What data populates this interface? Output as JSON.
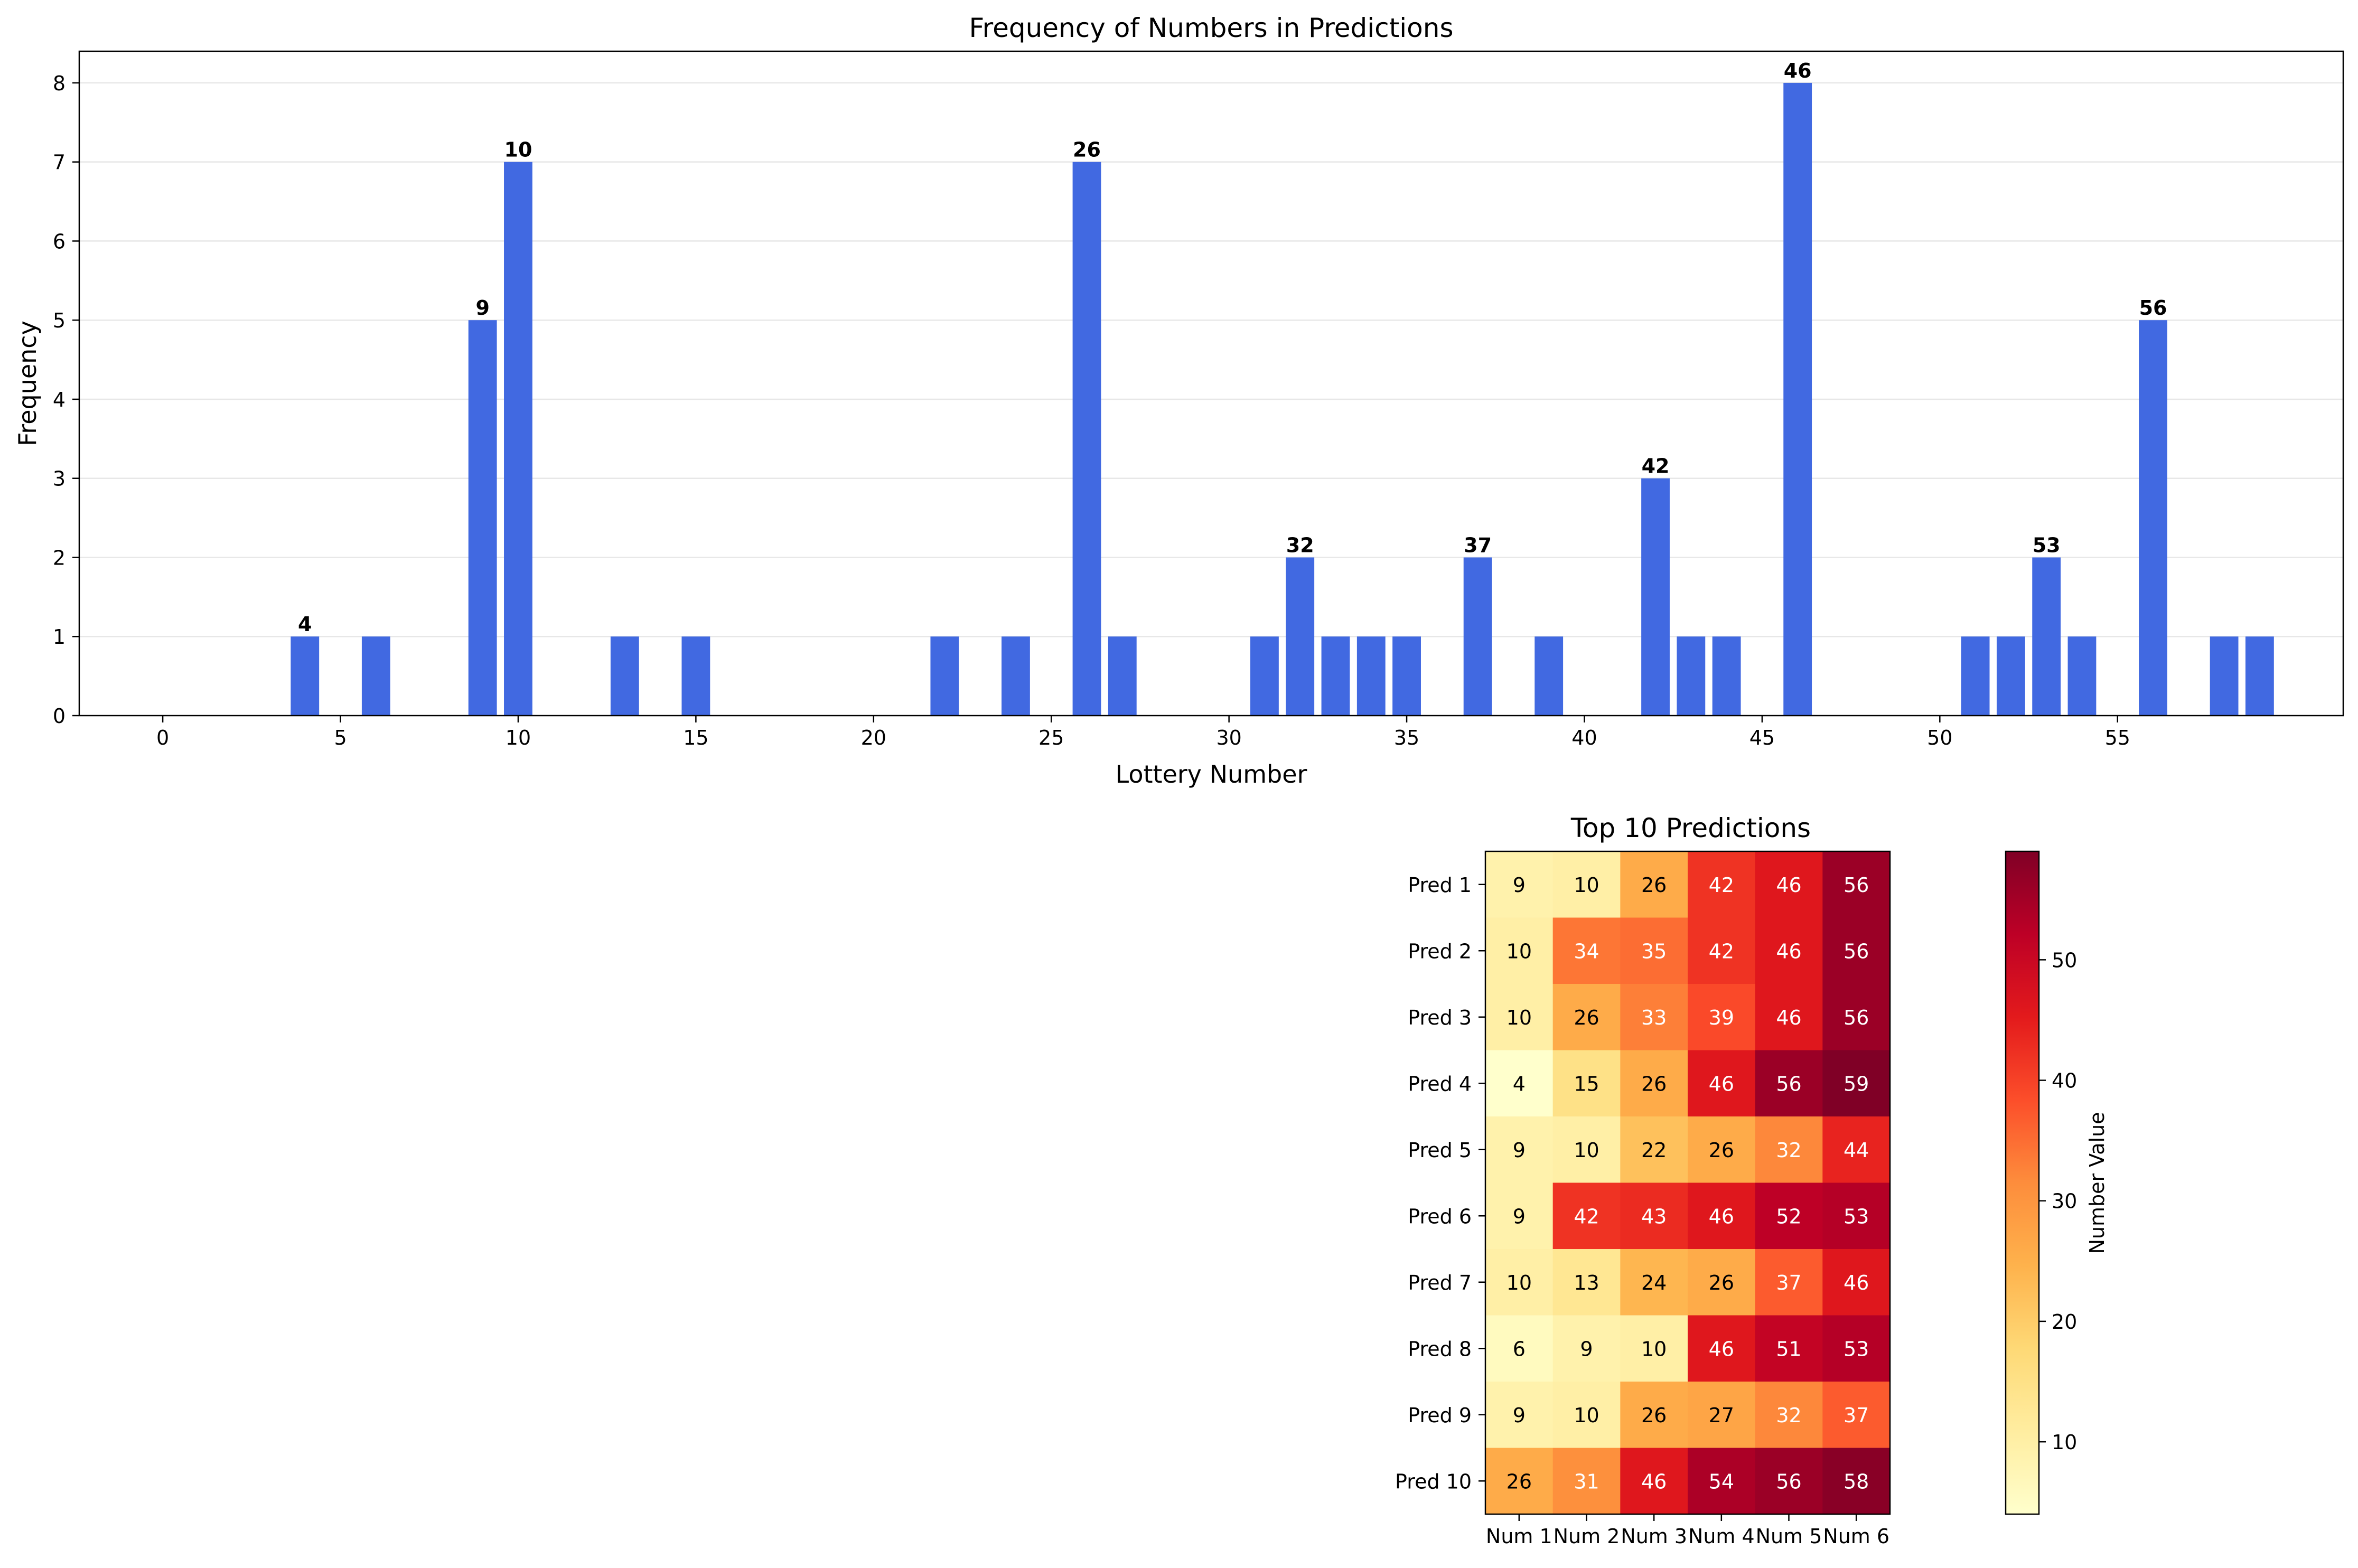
{
  "chart_data": [
    {
      "type": "bar",
      "title": "Frequency of Numbers in Predictions",
      "xlabel": "Lottery Number",
      "ylabel": "Frequency",
      "xlim": [
        -2.35,
        61.35
      ],
      "ylim": [
        0,
        8.4
      ],
      "xticks": [
        "0",
        "5",
        "10",
        "15",
        "20",
        "25",
        "30",
        "35",
        "40",
        "45",
        "50",
        "55"
      ],
      "yticks": [
        "0",
        "1",
        "2",
        "3",
        "4",
        "5",
        "6",
        "7",
        "8"
      ],
      "grid": "y",
      "bar_color": "#4169e1",
      "x": [
        4,
        6,
        9,
        10,
        13,
        15,
        22,
        24,
        26,
        27,
        31,
        32,
        33,
        34,
        35,
        37,
        39,
        42,
        43,
        44,
        46,
        51,
        52,
        53,
        54,
        56,
        58,
        59
      ],
      "values": [
        1,
        1,
        5,
        7,
        1,
        1,
        1,
        1,
        7,
        1,
        1,
        2,
        1,
        1,
        1,
        2,
        1,
        3,
        1,
        1,
        8,
        1,
        1,
        2,
        1,
        5,
        1,
        1
      ],
      "annotations": [
        {
          "x": 4,
          "y": 1,
          "label": "4"
        },
        {
          "x": 9,
          "y": 5,
          "label": "9"
        },
        {
          "x": 10,
          "y": 7,
          "label": "10"
        },
        {
          "x": 26,
          "y": 7,
          "label": "26"
        },
        {
          "x": 32,
          "y": 2,
          "label": "32"
        },
        {
          "x": 37,
          "y": 2,
          "label": "37"
        },
        {
          "x": 42,
          "y": 3,
          "label": "42"
        },
        {
          "x": 46,
          "y": 8,
          "label": "46"
        },
        {
          "x": 53,
          "y": 2,
          "label": "53"
        },
        {
          "x": 56,
          "y": 5,
          "label": "56"
        }
      ]
    },
    {
      "type": "heatmap",
      "title": "Top 10 Predictions",
      "colormap": "YlOrRd",
      "color_range": [
        4,
        59
      ],
      "rows": [
        "Pred 1",
        "Pred 2",
        "Pred 3",
        "Pred 4",
        "Pred 5",
        "Pred 6",
        "Pred 7",
        "Pred 8",
        "Pred 9",
        "Pred 10"
      ],
      "columns": [
        "Num 1",
        "Num 2",
        "Num 3",
        "Num 4",
        "Num 5",
        "Num 6"
      ],
      "values": [
        [
          9,
          10,
          26,
          42,
          46,
          56
        ],
        [
          10,
          34,
          35,
          42,
          46,
          56
        ],
        [
          10,
          26,
          33,
          39,
          46,
          56
        ],
        [
          4,
          15,
          26,
          46,
          56,
          59
        ],
        [
          9,
          10,
          22,
          26,
          32,
          44
        ],
        [
          9,
          42,
          43,
          46,
          52,
          53
        ],
        [
          10,
          13,
          24,
          26,
          37,
          46
        ],
        [
          6,
          9,
          10,
          46,
          51,
          53
        ],
        [
          9,
          10,
          26,
          27,
          32,
          37
        ],
        [
          26,
          31,
          46,
          54,
          56,
          58
        ]
      ],
      "colorbar": {
        "label": "Number Value",
        "ticks": [
          "10",
          "20",
          "30",
          "40",
          "50"
        ]
      }
    }
  ]
}
